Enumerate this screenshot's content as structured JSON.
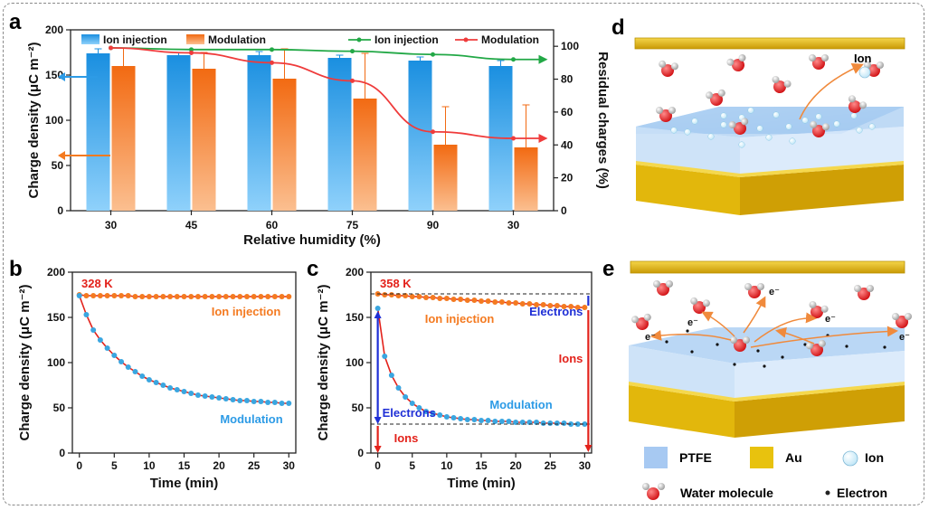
{
  "panels": {
    "a": "a",
    "b": "b",
    "c": "c",
    "d": "d",
    "e": "e"
  },
  "chart_data": [
    {
      "id": "a",
      "type": "bar",
      "categories": [
        "30",
        "45",
        "60",
        "75",
        "90",
        "30"
      ],
      "xlabel": "Relative humidity (%)",
      "ylabel": "Charge density (μC m⁻²)",
      "ylim": [
        0,
        200
      ],
      "yticks": [
        0,
        50,
        100,
        150,
        200
      ],
      "y2label": "Residual charges (%)",
      "y2lim": [
        0,
        110
      ],
      "y2ticks": [
        0,
        20,
        40,
        60,
        80,
        100
      ],
      "series": [
        {
          "name": "Ion injection",
          "kind": "bar",
          "values": [
            174,
            172,
            172,
            169,
            166,
            160
          ],
          "errors": [
            5,
            3,
            4,
            3,
            4,
            6
          ]
        },
        {
          "name": "Modulation",
          "kind": "bar",
          "values": [
            160,
            157,
            146,
            124,
            73,
            70
          ],
          "errors": [
            20,
            18,
            33,
            50,
            42,
            47
          ]
        },
        {
          "name": "Ion injection",
          "kind": "line",
          "axis": "right",
          "values": [
            99,
            98,
            98,
            97,
            95,
            92
          ]
        },
        {
          "name": "Modulation",
          "kind": "line",
          "axis": "right",
          "values": [
            99,
            96,
            90,
            79,
            48,
            44
          ]
        }
      ],
      "colors": {
        "ion": "#2d9be6",
        "mod": "#f47a20",
        "ion_line": "#22a846",
        "mod_line": "#ef3b3b"
      }
    },
    {
      "id": "b",
      "type": "scatter",
      "annotation": "328 K",
      "xlabel": "Time (min)",
      "ylabel": "Charge density (μC m⁻²)",
      "xlim": [
        -1,
        31
      ],
      "xticks": [
        0,
        5,
        10,
        15,
        20,
        25,
        30
      ],
      "ylim": [
        0,
        200
      ],
      "yticks": [
        0,
        50,
        100,
        150,
        200
      ],
      "series": [
        {
          "name": "Ion injection",
          "x": [
            0,
            1,
            2,
            3,
            4,
            5,
            6,
            7,
            8,
            9,
            10,
            11,
            12,
            13,
            14,
            15,
            16,
            17,
            18,
            19,
            20,
            21,
            22,
            23,
            24,
            25,
            26,
            27,
            28,
            29,
            30
          ],
          "values": [
            175,
            174,
            174,
            174,
            174,
            174,
            174,
            174,
            173,
            173,
            173,
            173,
            173,
            173,
            173,
            173,
            173,
            173,
            173,
            173,
            173,
            173,
            173,
            173,
            173,
            173,
            173,
            173,
            173,
            173,
            173
          ]
        },
        {
          "name": "Modulation",
          "x": [
            0,
            1,
            2,
            3,
            4,
            5,
            6,
            7,
            8,
            9,
            10,
            11,
            12,
            13,
            14,
            15,
            16,
            17,
            18,
            19,
            20,
            21,
            22,
            23,
            24,
            25,
            26,
            27,
            28,
            29,
            30
          ],
          "values": [
            174,
            153,
            136,
            125,
            116,
            108,
            101,
            95,
            90,
            85,
            81,
            78,
            75,
            72,
            70,
            68,
            66,
            64,
            63,
            62,
            61,
            60,
            59,
            58,
            58,
            57,
            57,
            56,
            56,
            55,
            55
          ]
        }
      ]
    },
    {
      "id": "c",
      "type": "scatter",
      "annotation": "358 K",
      "xlabel": "Time (min)",
      "ylabel": "Charge density (μC m⁻²)",
      "xlim": [
        -1,
        31
      ],
      "xticks": [
        0,
        5,
        10,
        15,
        20,
        25,
        30
      ],
      "ylim": [
        0,
        200
      ],
      "yticks": [
        0,
        50,
        100,
        150,
        200
      ],
      "series": [
        {
          "name": "Ion injection",
          "x": [
            0,
            1,
            2,
            3,
            4,
            5,
            6,
            7,
            8,
            9,
            10,
            11,
            12,
            13,
            14,
            15,
            16,
            17,
            18,
            19,
            20,
            21,
            22,
            23,
            24,
            25,
            26,
            27,
            28,
            29,
            30
          ],
          "values": [
            176,
            175,
            175,
            174,
            174,
            173,
            173,
            172,
            172,
            171,
            171,
            170,
            170,
            169,
            169,
            168,
            168,
            167,
            167,
            166,
            166,
            165,
            165,
            164,
            164,
            163,
            163,
            162,
            162,
            161,
            161
          ]
        },
        {
          "name": "Modulation",
          "x": [
            0,
            1,
            2,
            3,
            4,
            5,
            6,
            7,
            8,
            9,
            10,
            11,
            12,
            13,
            14,
            15,
            16,
            17,
            18,
            19,
            20,
            21,
            22,
            23,
            24,
            25,
            26,
            27,
            28,
            29,
            30
          ],
          "values": [
            160,
            107,
            86,
            72,
            62,
            55,
            50,
            46,
            44,
            42,
            40,
            39,
            38,
            37,
            37,
            36,
            36,
            35,
            35,
            35,
            34,
            34,
            34,
            34,
            33,
            33,
            33,
            33,
            32,
            32,
            32
          ]
        }
      ],
      "labels": {
        "electrons": "Electrons",
        "ions": "Ions"
      }
    }
  ],
  "schematics": {
    "ion_label": "Ion",
    "electron_label": "e⁻"
  },
  "legend": {
    "ptfe": "PTFE",
    "au": "Au",
    "ion": "Ion",
    "water": "Water molecule",
    "electron": "Electron"
  }
}
